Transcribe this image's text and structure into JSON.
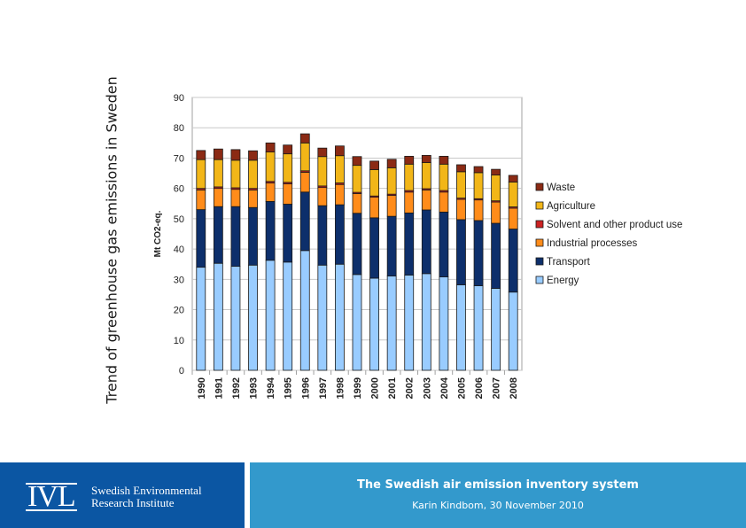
{
  "slide": {
    "title": "Trend of greenhouse gas emissions in Sweden",
    "footer_title": "The Swedish air emission inventory system",
    "footer_subtitle": "Karin Kindbom, 30 November 2010",
    "logo": {
      "mark": "IVL",
      "line1": "Swedish Environmental",
      "line2": "Research Institute"
    },
    "colors": {
      "footer_left": "#0b56a3",
      "footer_right": "#3399cc"
    }
  },
  "chart_data": {
    "type": "bar",
    "stacked": true,
    "ylabel": "Mt CO2-eq.",
    "ylim": [
      0,
      90
    ],
    "yticks": [
      0,
      10,
      20,
      30,
      40,
      50,
      60,
      70,
      80,
      90
    ],
    "grid": true,
    "legend_position": "right",
    "categories": [
      "1990",
      "1991",
      "1992",
      "1993",
      "1994",
      "1995",
      "1996",
      "1997",
      "1998",
      "1999",
      "2000",
      "2001",
      "2002",
      "2003",
      "2004",
      "2005",
      "2006",
      "2007",
      "2008"
    ],
    "series": [
      {
        "name": "Energy",
        "color": "#99ccff",
        "values": [
          34,
          35.3,
          34.3,
          34.7,
          36.3,
          35.7,
          39.5,
          34.7,
          35,
          31.6,
          30.4,
          31.1,
          31.4,
          31.9,
          30.8,
          28.2,
          27.9,
          27,
          25.8
        ]
      },
      {
        "name": "Transport",
        "color": "#0d2f6b",
        "values": [
          19,
          18.7,
          19.7,
          19,
          19.4,
          19.1,
          19.3,
          19.6,
          19.6,
          20.2,
          19.9,
          19.7,
          20.5,
          21,
          21.4,
          21.5,
          21.5,
          21.5,
          20.8
        ]
      },
      {
        "name": "Industrial processes",
        "color": "#ff8c1a",
        "values": [
          6.5,
          6,
          5.7,
          5.8,
          6.1,
          6.7,
          6.5,
          6,
          6.7,
          6.5,
          6.8,
          6.9,
          6.9,
          6.6,
          6.6,
          6.7,
          6.8,
          7,
          6.9
        ]
      },
      {
        "name": "Solvent and other product use",
        "color": "#cc2222",
        "values": [
          0.5,
          0.5,
          0.5,
          0.5,
          0.5,
          0.5,
          0.5,
          0.5,
          0.5,
          0.4,
          0.4,
          0.4,
          0.5,
          0.4,
          0.5,
          0.4,
          0.4,
          0.4,
          0.4
        ]
      },
      {
        "name": "Agriculture",
        "color": "#f2b618",
        "values": [
          9.5,
          9,
          9.1,
          9.3,
          9.7,
          9.4,
          9.2,
          9.7,
          9,
          8.9,
          8.7,
          8.7,
          8.7,
          8.6,
          8.7,
          8.7,
          8.6,
          8.5,
          8.2
        ]
      },
      {
        "name": "Waste",
        "color": "#8b2a14",
        "values": [
          3,
          3.5,
          3.5,
          3.1,
          3,
          2.9,
          3,
          2.8,
          3.2,
          2.9,
          2.8,
          2.8,
          2.6,
          2.4,
          2.6,
          2.3,
          2,
          1.9,
          2.2
        ]
      }
    ]
  }
}
